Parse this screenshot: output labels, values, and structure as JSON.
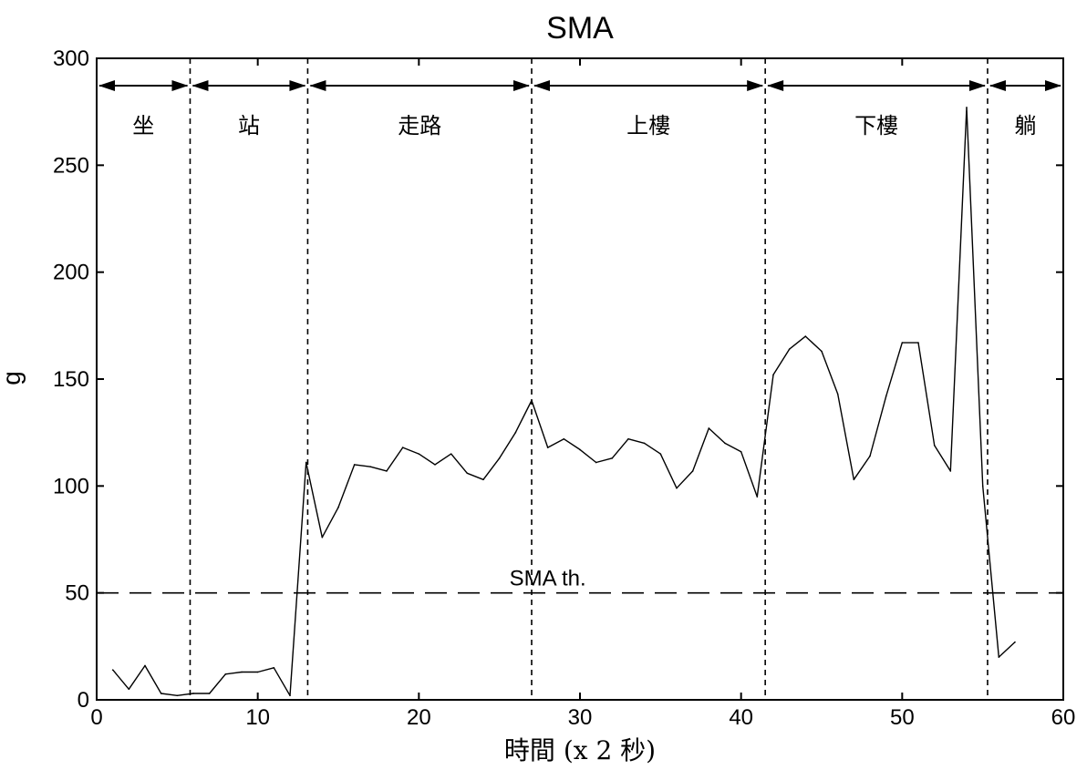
{
  "chart_data": {
    "type": "line",
    "title": "SMA",
    "xlabel": "時間 (x 2 秒)",
    "ylabel": "g",
    "xlim": [
      0,
      60
    ],
    "ylim": [
      0,
      300
    ],
    "xticks": [
      0,
      10,
      20,
      30,
      40,
      50,
      60
    ],
    "yticks": [
      0,
      50,
      100,
      150,
      200,
      250,
      300
    ],
    "grid": false,
    "series": [
      {
        "x": [
          1,
          2,
          3,
          4,
          5,
          6,
          7,
          8,
          9,
          10,
          11,
          12,
          13,
          14,
          15,
          16,
          17,
          18,
          19,
          20,
          21,
          22,
          23,
          24,
          25,
          26,
          27,
          28,
          29,
          30,
          31,
          32,
          33,
          34,
          35,
          36,
          37,
          38,
          39,
          40,
          41,
          42,
          43,
          44,
          45,
          46,
          47,
          48,
          49,
          50,
          51,
          52,
          53,
          54,
          55,
          56,
          57
        ],
        "values": [
          14,
          5,
          16,
          3,
          2,
          3,
          3,
          12,
          13,
          13,
          15,
          2,
          111,
          76,
          90,
          110,
          109,
          107,
          118,
          115,
          110,
          115,
          106,
          103,
          113,
          125,
          140,
          118,
          122,
          117,
          111,
          113,
          122,
          120,
          115,
          99,
          107,
          127,
          120,
          116,
          95,
          152,
          164,
          170,
          163,
          143,
          103,
          114,
          142,
          167,
          167,
          119,
          107,
          277,
          100,
          20,
          27
        ]
      }
    ],
    "threshold": {
      "label": "SMA th.",
      "value": 50
    },
    "segments": [
      {
        "label": "坐",
        "start": 0,
        "end": 5.8
      },
      {
        "label": "站",
        "start": 5.8,
        "end": 13.1
      },
      {
        "label": "走路",
        "start": 13.1,
        "end": 27.0
      },
      {
        "label": "上樓",
        "start": 27.0,
        "end": 41.5
      },
      {
        "label": "下樓",
        "start": 41.5,
        "end": 55.3
      },
      {
        "label": "躺",
        "start": 55.3,
        "end": 60
      }
    ],
    "line_color": "#000000"
  }
}
